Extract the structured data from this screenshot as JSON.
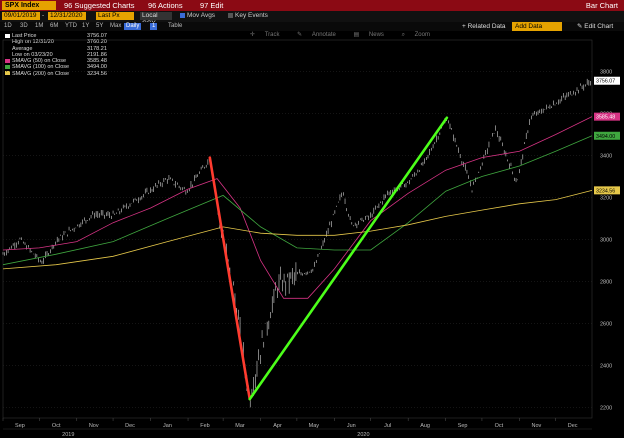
{
  "toolbar": {
    "ticker": "SPX Index",
    "menu_suggested": "96 Suggested Charts",
    "menu_actions": "96 Actions",
    "menu_edit": "97 Edit",
    "title": "Bar Chart"
  },
  "controls": {
    "start_date": "09/01/2019",
    "end_date": "12/31/2020",
    "price_type": "Last Px",
    "currency": "Local CCY",
    "mov_avgs": "Mov Avgs",
    "key_events": "Key Events"
  },
  "periods": [
    "1D",
    "3D",
    "1M",
    "6M",
    "YTD",
    "1Y",
    "5Y",
    "Max"
  ],
  "frequency": "Daily",
  "interval": "1",
  "table_label": "Table",
  "related_data": "Related Data",
  "add_data": "Add Data",
  "edit_chart": "Edit Chart",
  "tools": [
    "Track",
    "Annotate",
    "News",
    "Zoom"
  ],
  "legend": [
    {
      "label": "Last Price",
      "value": "3756.07",
      "color": "#ffffff"
    },
    {
      "label": "High on 12/31/20",
      "value": "3760.20",
      "color": ""
    },
    {
      "label": "Average",
      "value": "3178.21",
      "color": ""
    },
    {
      "label": "Low on 03/23/20",
      "value": "2191.86",
      "color": ""
    },
    {
      "label": "SMAVG (50)  on Close",
      "value": "3585.48",
      "color": "#d63384"
    },
    {
      "label": "SMAVG (100)  on Close",
      "value": "3494.00",
      "color": "#3fa63f"
    },
    {
      "label": "SMAVG (200)  on Close",
      "value": "3234.56",
      "color": "#e6c84a"
    }
  ],
  "chart_data": {
    "type": "bar",
    "ylim": [
      2150,
      3950
    ],
    "yticks": [
      2200,
      2400,
      2600,
      2800,
      3000,
      3200,
      3400,
      3600,
      3800
    ],
    "xticks": [
      "Sep",
      "Oct",
      "Nov",
      "Dec",
      "Jan",
      "Feb",
      "Mar",
      "Apr",
      "May",
      "Jun",
      "Jul",
      "Aug",
      "Sep",
      "Oct",
      "Nov",
      "Dec"
    ],
    "years": [
      "2019",
      "2020"
    ],
    "price_series": [
      [
        "2019-09-01",
        2930
      ],
      [
        "2019-09-15",
        3000
      ],
      [
        "2019-10-03",
        2890
      ],
      [
        "2019-10-15",
        2995
      ],
      [
        "2019-11-01",
        3065
      ],
      [
        "2019-11-15",
        3120
      ],
      [
        "2019-12-02",
        3115
      ],
      [
        "2019-12-15",
        3170
      ],
      [
        "2019-12-31",
        3230
      ],
      [
        "2020-01-15",
        3290
      ],
      [
        "2020-01-31",
        3230
      ],
      [
        "2020-02-19",
        3385
      ],
      [
        "2020-03-01",
        3000
      ],
      [
        "2020-03-10",
        2750
      ],
      [
        "2020-03-23",
        2240
      ],
      [
        "2020-04-01",
        2480
      ],
      [
        "2020-04-15",
        2780
      ],
      [
        "2020-05-01",
        2830
      ],
      [
        "2020-05-15",
        2860
      ],
      [
        "2020-06-08",
        3230
      ],
      [
        "2020-06-15",
        3070
      ],
      [
        "2020-07-01",
        3110
      ],
      [
        "2020-07-15",
        3220
      ],
      [
        "2020-08-01",
        3270
      ],
      [
        "2020-08-15",
        3370
      ],
      [
        "2020-09-02",
        3580
      ],
      [
        "2020-09-23",
        3240
      ],
      [
        "2020-10-12",
        3530
      ],
      [
        "2020-10-30",
        3270
      ],
      [
        "2020-11-10",
        3580
      ],
      [
        "2020-11-25",
        3630
      ],
      [
        "2020-12-15",
        3700
      ],
      [
        "2020-12-31",
        3756
      ]
    ],
    "series": [
      {
        "name": "SMAVG (50)  on Close",
        "color": "#d63384",
        "data": [
          [
            "2019-09-01",
            2950
          ],
          [
            "2019-10-01",
            2960
          ],
          [
            "2019-11-01",
            2990
          ],
          [
            "2019-12-01",
            3080
          ],
          [
            "2020-01-01",
            3150
          ],
          [
            "2020-02-01",
            3240
          ],
          [
            "2020-02-25",
            3290
          ],
          [
            "2020-03-15",
            3150
          ],
          [
            "2020-04-01",
            2900
          ],
          [
            "2020-04-20",
            2720
          ],
          [
            "2020-05-10",
            2720
          ],
          [
            "2020-06-01",
            2860
          ],
          [
            "2020-07-01",
            3090
          ],
          [
            "2020-08-01",
            3220
          ],
          [
            "2020-09-01",
            3330
          ],
          [
            "2020-10-01",
            3390
          ],
          [
            "2020-11-01",
            3420
          ],
          [
            "2020-12-01",
            3500
          ],
          [
            "2020-12-31",
            3585
          ]
        ]
      },
      {
        "name": "SMAVG (100)  on Close",
        "color": "#3fa63f",
        "data": [
          [
            "2019-09-01",
            2880
          ],
          [
            "2019-10-15",
            2930
          ],
          [
            "2019-12-01",
            2990
          ],
          [
            "2020-01-15",
            3100
          ],
          [
            "2020-03-01",
            3210
          ],
          [
            "2020-04-01",
            3060
          ],
          [
            "2020-05-01",
            2960
          ],
          [
            "2020-06-01",
            2950
          ],
          [
            "2020-07-01",
            2950
          ],
          [
            "2020-08-01",
            3080
          ],
          [
            "2020-09-01",
            3230
          ],
          [
            "2020-10-01",
            3300
          ],
          [
            "2020-11-01",
            3350
          ],
          [
            "2020-12-01",
            3420
          ],
          [
            "2020-12-31",
            3494
          ]
        ]
      },
      {
        "name": "SMAVG (200)  on Close",
        "color": "#e6c84a",
        "data": [
          [
            "2019-09-01",
            2860
          ],
          [
            "2019-10-15",
            2880
          ],
          [
            "2019-12-01",
            2920
          ],
          [
            "2020-01-15",
            2990
          ],
          [
            "2020-03-01",
            3060
          ],
          [
            "2020-04-01",
            3030
          ],
          [
            "2020-05-01",
            3020
          ],
          [
            "2020-06-01",
            3020
          ],
          [
            "2020-07-01",
            3040
          ],
          [
            "2020-08-01",
            3070
          ],
          [
            "2020-09-01",
            3110
          ],
          [
            "2020-10-01",
            3140
          ],
          [
            "2020-11-01",
            3170
          ],
          [
            "2020-12-01",
            3190
          ],
          [
            "2020-12-31",
            3234
          ]
        ]
      }
    ],
    "annotations": [
      {
        "color": "#ff3b2f",
        "from": [
          "2020-02-19",
          3390
        ],
        "to": [
          "2020-03-23",
          2240
        ]
      },
      {
        "color": "#4cff1a",
        "from": [
          "2020-03-23",
          2240
        ],
        "to": [
          "2020-09-02",
          3580
        ]
      }
    ],
    "right_labels": [
      {
        "value": "3756.07",
        "y": 3756,
        "bg": "#ffffff",
        "fg": "#000000"
      },
      {
        "value": "3585.48",
        "y": 3585,
        "bg": "#d63384",
        "fg": "#ffffff"
      },
      {
        "value": "3494.00",
        "y": 3494,
        "bg": "#3fa63f",
        "fg": "#000000"
      },
      {
        "value": "3234.56",
        "y": 3234,
        "bg": "#e6c84a",
        "fg": "#000000"
      }
    ]
  }
}
